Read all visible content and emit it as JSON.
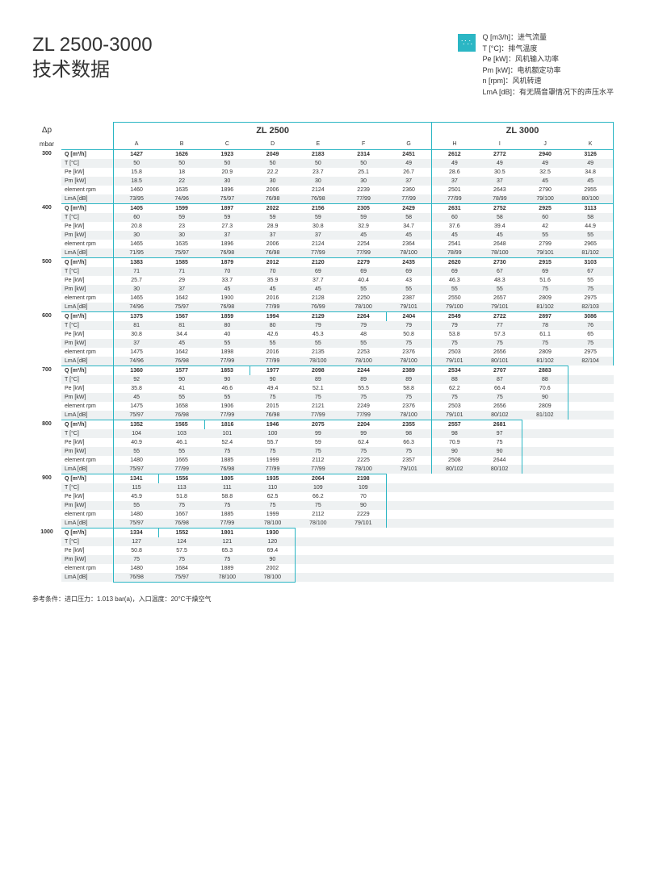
{
  "title_line1": "ZL 2500-3000",
  "title_line2": "技术数据",
  "legend_icon": "∵∴",
  "legend": [
    "Q [m3/h]：进气流量",
    "T [°C]：排气温度",
    "Pe [kW]：风机输入功率",
    "Pm [kW]：电机额定功率",
    "n [rpm]：风机转速",
    "LmA [dB]：有无隔音罩情况下的声压水平"
  ],
  "dp_label": "Δp",
  "dp_unit": "mbar",
  "model1": "ZL 2500",
  "model2": "ZL 3000",
  "columns": [
    "A",
    "B",
    "C",
    "D",
    "E",
    "F",
    "G",
    "H",
    "I",
    "J",
    "K"
  ],
  "param_labels": [
    "Q [m³/h]",
    "T [°C]",
    "Pe [kW]",
    "Pm [kW]",
    "element rpm",
    "LmA [dB]"
  ],
  "blocks": [
    {
      "dp": "300",
      "boundary": 11,
      "rows": [
        [
          "1427",
          "1626",
          "1923",
          "2049",
          "2183",
          "2314",
          "2451",
          "2612",
          "2772",
          "2940",
          "3126"
        ],
        [
          "50",
          "50",
          "50",
          "50",
          "50",
          "50",
          "49",
          "49",
          "49",
          "49",
          "49"
        ],
        [
          "15.8",
          "18",
          "20.9",
          "22.2",
          "23.7",
          "25.1",
          "26.7",
          "28.6",
          "30.5",
          "32.5",
          "34.8"
        ],
        [
          "18.5",
          "22",
          "30",
          "30",
          "30",
          "30",
          "37",
          "37",
          "37",
          "45",
          "45"
        ],
        [
          "1460",
          "1635",
          "1896",
          "2006",
          "2124",
          "2239",
          "2360",
          "2501",
          "2643",
          "2790",
          "2955"
        ],
        [
          "73/95",
          "74/96",
          "75/97",
          "76/98",
          "76/98",
          "77/99",
          "77/99",
          "77/99",
          "78/99",
          "79/100",
          "80/100"
        ]
      ]
    },
    {
      "dp": "400",
      "boundary": 11,
      "rows": [
        [
          "1405",
          "1599",
          "1897",
          "2022",
          "2156",
          "2305",
          "2429",
          "2631",
          "2752",
          "2925",
          "3113"
        ],
        [
          "60",
          "59",
          "59",
          "59",
          "59",
          "59",
          "58",
          "60",
          "58",
          "60",
          "58"
        ],
        [
          "20.8",
          "23",
          "27.3",
          "28.9",
          "30.8",
          "32.9",
          "34.7",
          "37.6",
          "39.4",
          "42",
          "44.9"
        ],
        [
          "30",
          "30",
          "37",
          "37",
          "37",
          "45",
          "45",
          "45",
          "45",
          "55",
          "55"
        ],
        [
          "1465",
          "1635",
          "1896",
          "2006",
          "2124",
          "2254",
          "2364",
          "2541",
          "2648",
          "2799",
          "2965"
        ],
        [
          "71/95",
          "75/97",
          "76/98",
          "76/98",
          "77/99",
          "77/99",
          "78/100",
          "78/99",
          "78/100",
          "79/101",
          "81/102"
        ]
      ]
    },
    {
      "dp": "500",
      "boundary": 11,
      "rows": [
        [
          "1383",
          "1585",
          "1879",
          "2012",
          "2120",
          "2279",
          "2435",
          "2620",
          "2730",
          "2915",
          "3103"
        ],
        [
          "71",
          "71",
          "70",
          "70",
          "69",
          "69",
          "69",
          "69",
          "67",
          "69",
          "67"
        ],
        [
          "25.7",
          "29",
          "33.7",
          "35.9",
          "37.7",
          "40.4",
          "43",
          "46.3",
          "48.3",
          "51.6",
          "55"
        ],
        [
          "30",
          "37",
          "45",
          "45",
          "45",
          "55",
          "55",
          "55",
          "55",
          "75",
          "75"
        ],
        [
          "1465",
          "1642",
          "1900",
          "2016",
          "2128",
          "2250",
          "2387",
          "2550",
          "2657",
          "2809",
          "2975"
        ],
        [
          "74/96",
          "75/97",
          "76/98",
          "77/99",
          "76/99",
          "78/100",
          "79/101",
          "79/100",
          "79/101",
          "81/102",
          "82/103"
        ]
      ]
    },
    {
      "dp": "600",
      "boundary": 11,
      "stair_start": 6,
      "rows": [
        [
          "1375",
          "1567",
          "1859",
          "1994",
          "2129",
          "2264",
          "2404",
          "2549",
          "2722",
          "2897",
          "3086"
        ],
        [
          "81",
          "81",
          "80",
          "80",
          "79",
          "79",
          "79",
          "79",
          "77",
          "78",
          "76"
        ],
        [
          "30.8",
          "34.4",
          "40",
          "42.6",
          "45.3",
          "48",
          "50.8",
          "53.8",
          "57.3",
          "61.1",
          "65"
        ],
        [
          "37",
          "45",
          "55",
          "55",
          "55",
          "55",
          "75",
          "75",
          "75",
          "75",
          "75"
        ],
        [
          "1475",
          "1642",
          "1898",
          "2016",
          "2135",
          "2253",
          "2376",
          "2503",
          "2656",
          "2809",
          "2975"
        ],
        [
          "74/96",
          "76/98",
          "77/99",
          "77/99",
          "78/100",
          "78/100",
          "78/100",
          "79/101",
          "80/101",
          "81/102",
          "82/104"
        ]
      ]
    },
    {
      "dp": "700",
      "boundary": 10,
      "stair_start": 3,
      "rows": [
        [
          "1360",
          "1577",
          "1853",
          "1977",
          "2098",
          "2244",
          "2389",
          "2534",
          "2707",
          "2883",
          ""
        ],
        [
          "92",
          "90",
          "90",
          "90",
          "89",
          "89",
          "89",
          "88",
          "87",
          "88",
          ""
        ],
        [
          "35.8",
          "41",
          "46.6",
          "49.4",
          "52.1",
          "55.5",
          "58.8",
          "62.2",
          "66.4",
          "70.6",
          ""
        ],
        [
          "45",
          "55",
          "55",
          "75",
          "75",
          "75",
          "75",
          "75",
          "75",
          "90",
          ""
        ],
        [
          "1475",
          "1658",
          "1906",
          "2015",
          "2121",
          "2249",
          "2376",
          "2503",
          "2656",
          "2809",
          ""
        ],
        [
          "75/97",
          "76/98",
          "77/99",
          "76/98",
          "77/99",
          "77/99",
          "78/100",
          "79/101",
          "80/102",
          "81/102",
          ""
        ]
      ]
    },
    {
      "dp": "800",
      "boundary": 9,
      "stair_start": 2,
      "rows": [
        [
          "1352",
          "1565",
          "1816",
          "1946",
          "2075",
          "2204",
          "2355",
          "2557",
          "2681",
          "",
          ""
        ],
        [
          "104",
          "103",
          "101",
          "100",
          "99",
          "99",
          "98",
          "98",
          "97",
          "",
          ""
        ],
        [
          "40.9",
          "46.1",
          "52.4",
          "55.7",
          "59",
          "62.4",
          "66.3",
          "70.9",
          "75",
          "",
          ""
        ],
        [
          "55",
          "55",
          "75",
          "75",
          "75",
          "75",
          "75",
          "90",
          "90",
          "",
          ""
        ],
        [
          "1480",
          "1665",
          "1885",
          "1999",
          "2112",
          "2225",
          "2357",
          "2508",
          "2644",
          "",
          ""
        ],
        [
          "75/97",
          "77/99",
          "76/98",
          "77/99",
          "77/99",
          "78/100",
          "79/101",
          "80/102",
          "80/102",
          "",
          ""
        ]
      ]
    },
    {
      "dp": "900",
      "boundary": 6,
      "stair_start": 1,
      "rows": [
        [
          "1341",
          "1556",
          "1805",
          "1935",
          "2064",
          "2198",
          "",
          "",
          "",
          "",
          ""
        ],
        [
          "115",
          "113",
          "111",
          "110",
          "109",
          "109",
          "",
          "",
          "",
          "",
          ""
        ],
        [
          "45.9",
          "51.8",
          "58.8",
          "62.5",
          "66.2",
          "70",
          "",
          "",
          "",
          "",
          ""
        ],
        [
          "55",
          "75",
          "75",
          "75",
          "75",
          "90",
          "",
          "",
          "",
          "",
          ""
        ],
        [
          "1480",
          "1667",
          "1885",
          "1999",
          "2112",
          "2229",
          "",
          "",
          "",
          "",
          ""
        ],
        [
          "75/97",
          "76/98",
          "77/99",
          "78/100",
          "78/100",
          "79/101",
          "",
          "",
          "",
          "",
          ""
        ]
      ]
    },
    {
      "dp": "1000",
      "boundary": 4,
      "stair_start": 1,
      "rows": [
        [
          "1334",
          "1552",
          "1801",
          "1930",
          "",
          "",
          "",
          "",
          "",
          "",
          ""
        ],
        [
          "127",
          "124",
          "121",
          "120",
          "",
          "",
          "",
          "",
          "",
          "",
          ""
        ],
        [
          "50.8",
          "57.5",
          "65.3",
          "69.4",
          "",
          "",
          "",
          "",
          "",
          "",
          ""
        ],
        [
          "75",
          "75",
          "75",
          "90",
          "",
          "",
          "",
          "",
          "",
          "",
          ""
        ],
        [
          "1480",
          "1684",
          "1889",
          "2002",
          "",
          "",
          "",
          "",
          "",
          "",
          ""
        ],
        [
          "76/98",
          "75/97",
          "78/100",
          "78/100",
          "",
          "",
          "",
          "",
          "",
          "",
          ""
        ]
      ]
    }
  ],
  "footnote": "参考条件：进口压力：1.013 bar(a)，入口温度：20°C干燥空气",
  "colors": {
    "accent": "#2bb6c4",
    "stripe": "#eef1f2"
  }
}
